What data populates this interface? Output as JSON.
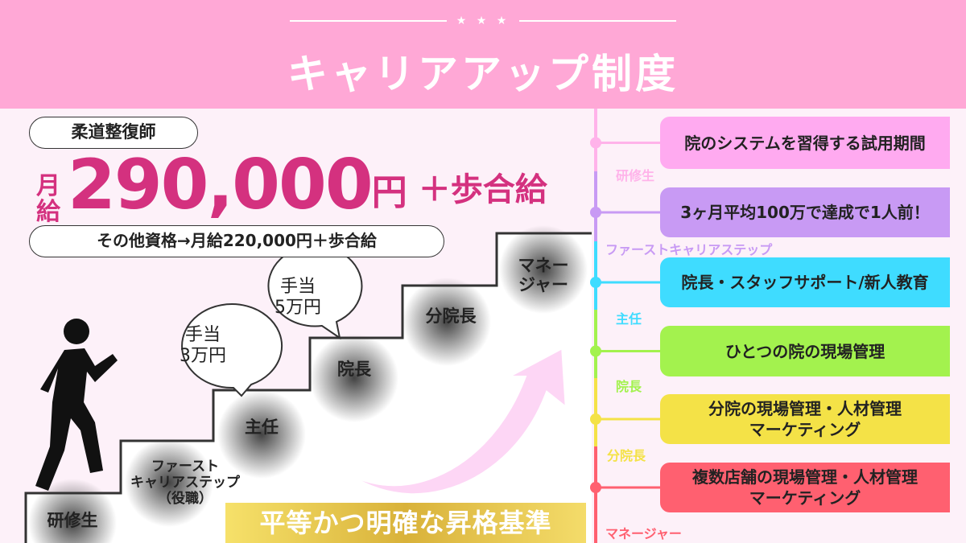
{
  "header": {
    "title": "キャリアアップ制度",
    "stars": "★ ★ ★"
  },
  "salary": {
    "qualification": "柔道整復師",
    "prefix_top": "月",
    "prefix_bottom": "給",
    "amount": "290,000",
    "yen": "円",
    "plus": "＋歩合給",
    "other": "その他資格→月給220,000円＋歩合給"
  },
  "stairs": {
    "steps": [
      "研修生",
      "ファースト\nキャリアステップ\n（役職）",
      "主任",
      "院長",
      "分院長",
      "マネー\nジャー"
    ],
    "bubbles": [
      {
        "line1": "手当",
        "line2": "3万円"
      },
      {
        "line1": "手当",
        "line2": "5万円"
      }
    ],
    "banner": "平等かつ明確な昇格基準"
  },
  "timeline": [
    {
      "label": "研修生",
      "desc": "院のシステムを習得する試用期間",
      "color": "#ffaaf0",
      "line": "#ffb3ea"
    },
    {
      "label": "ファーストキャリアステップ",
      "desc": "3ヶ月平均100万で達成で1人前！",
      "color": "#c89af4",
      "line": "#c89af4"
    },
    {
      "label": "主任",
      "desc": "院長・スタッフサポート/新人教育",
      "color": "#3fdcff",
      "line": "#3fdcff"
    },
    {
      "label": "院長",
      "desc": "ひとつの院の現場管理",
      "color": "#a3f24e",
      "line": "#a3f24e"
    },
    {
      "label": "分院長",
      "desc": "分院の現場管理・人材管理\nマーケティング",
      "color": "#f4e247",
      "line": "#f4e247"
    },
    {
      "label": "マネージャー",
      "desc": "複数店舗の現場管理・人材管理\nマーケティング",
      "color": "#ff6070",
      "line": "#ff6070"
    }
  ]
}
